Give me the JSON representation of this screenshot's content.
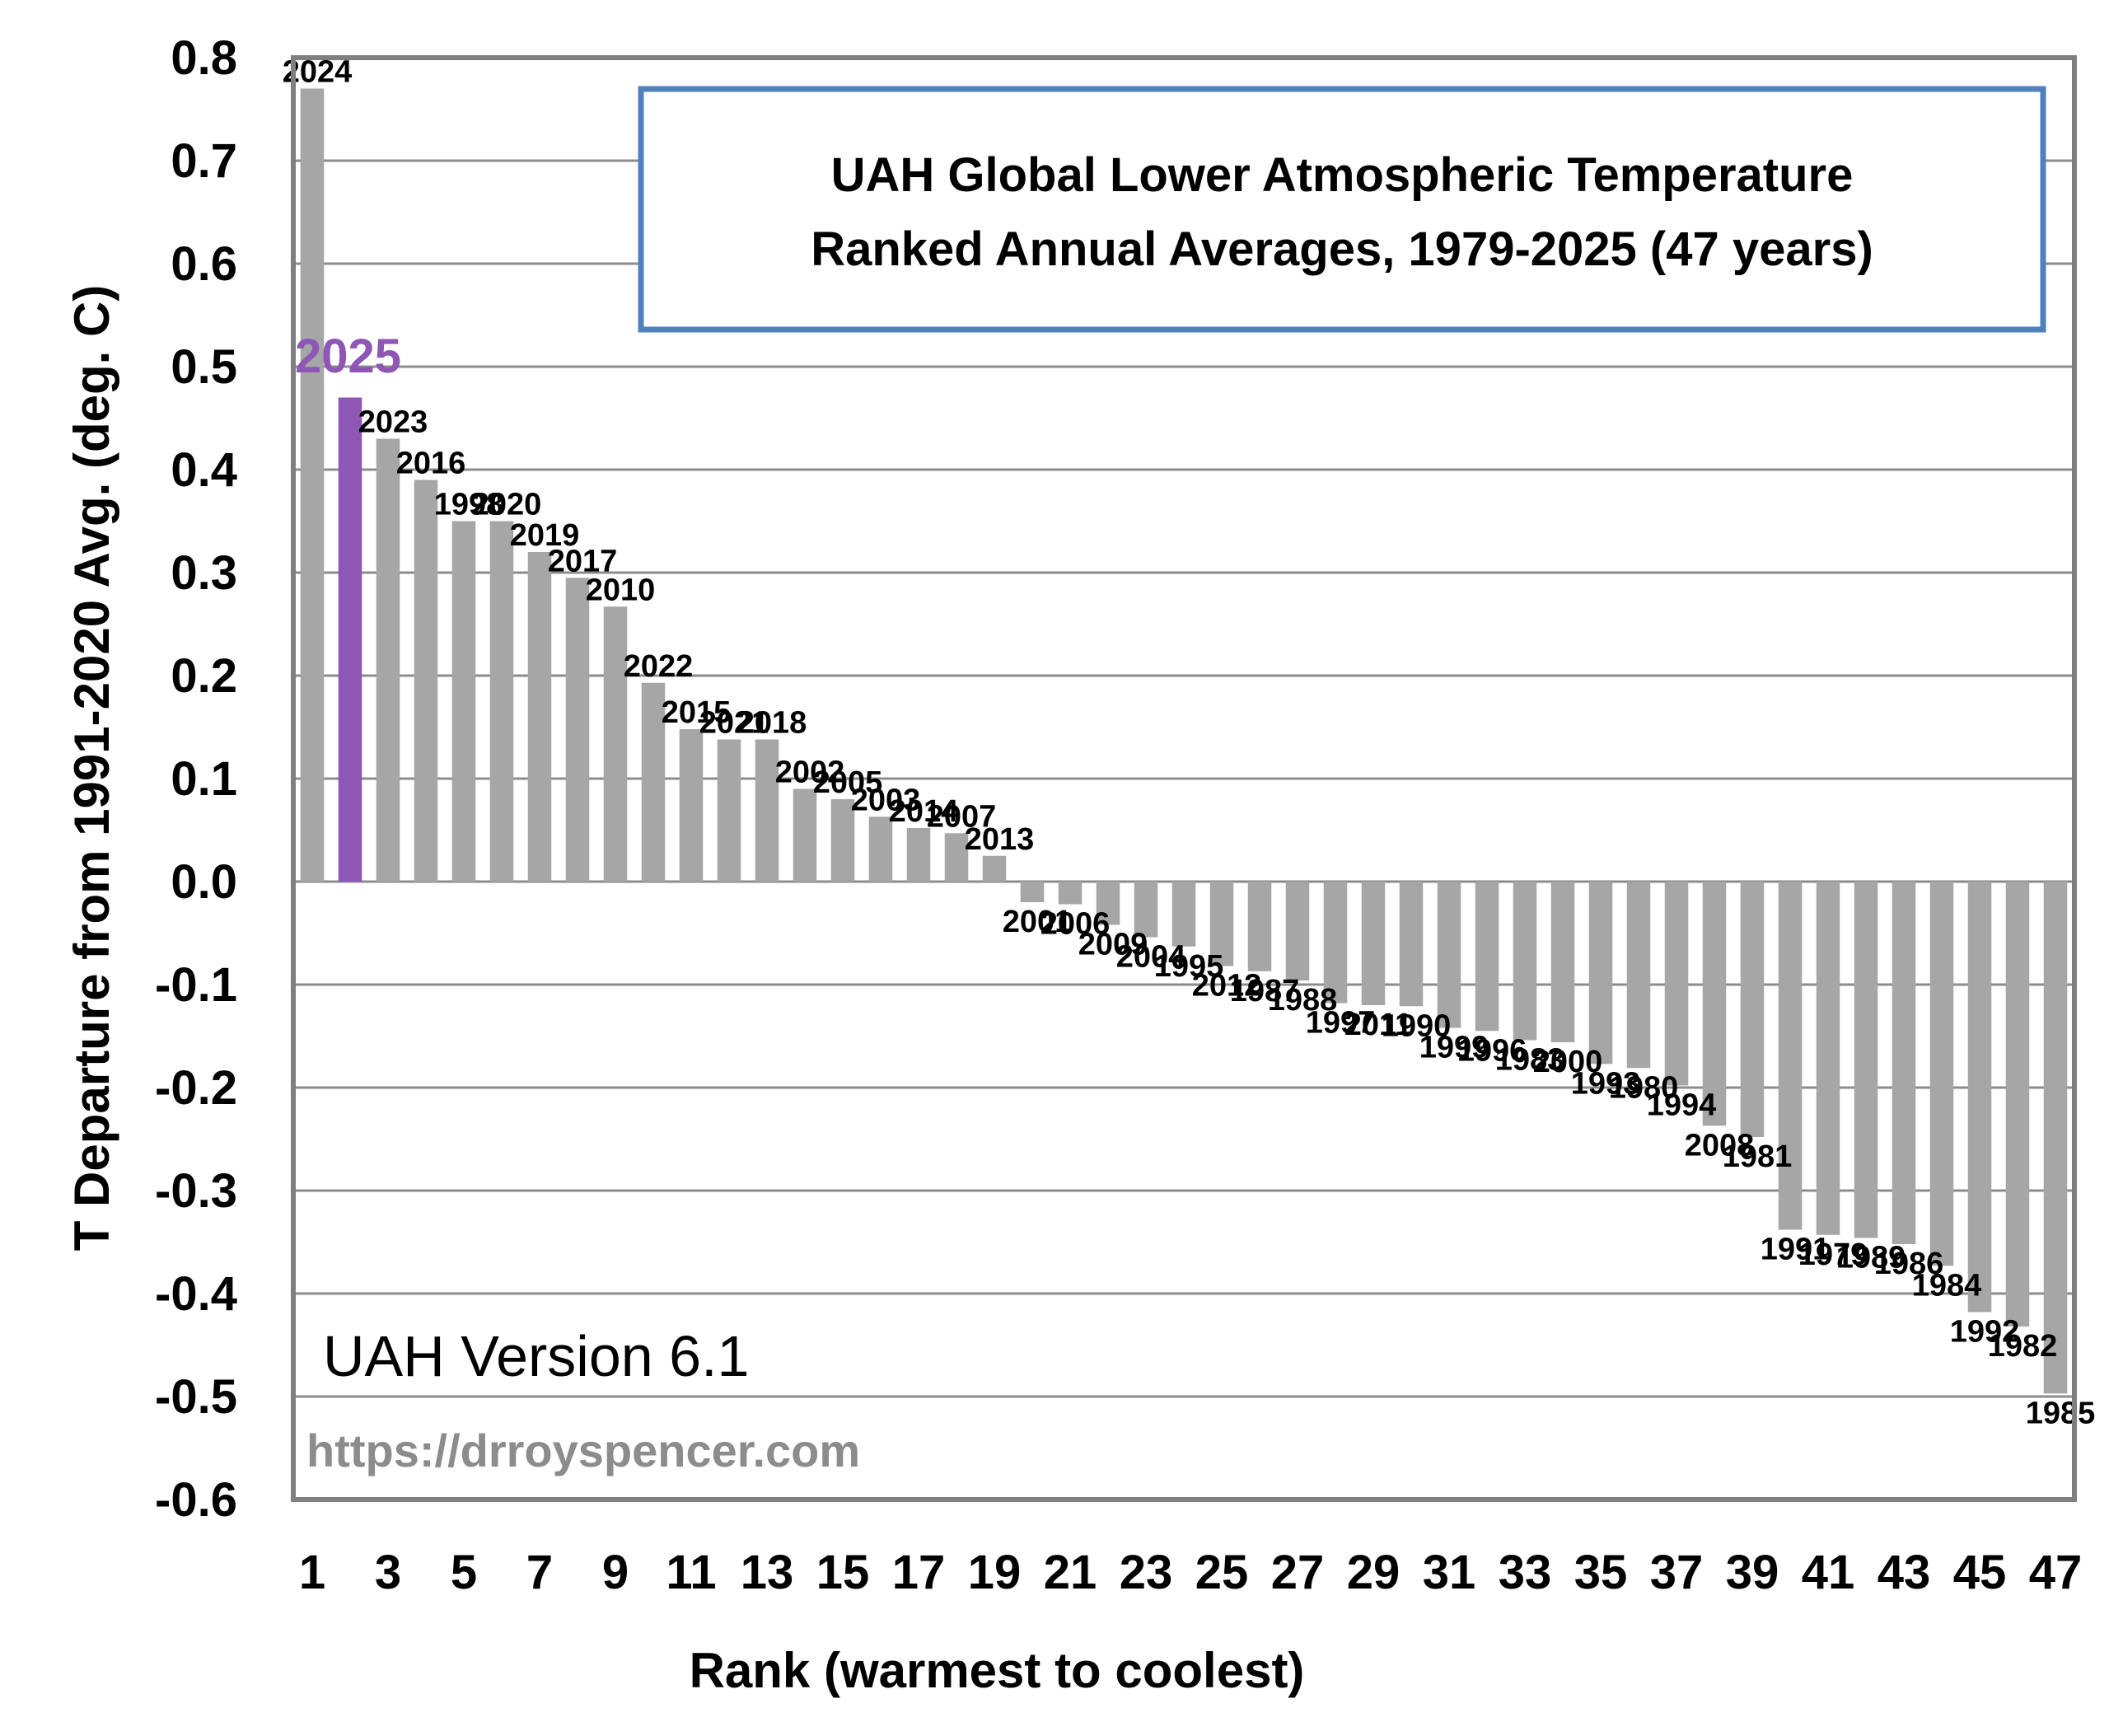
{
  "chart_data": {
    "type": "bar",
    "title": [
      "UAH Global Lower Atmospheric Temperature",
      "Ranked Annual Averages, 1979-2025 (47 years)"
    ],
    "xlabel": "Rank (warmest to coolest)",
    "ylabel": "T Departure from 1991-2020 Avg. (deg. C)",
    "ylim": [
      -0.6,
      0.8
    ],
    "ytick_labels": [
      "0.8",
      "0.7",
      "0.6",
      "0.5",
      "0.4",
      "0.3",
      "0.2",
      "0.1",
      "0.0",
      "-0.1",
      "-0.2",
      "-0.3",
      "-0.4",
      "-0.5",
      "-0.6"
    ],
    "xtick_labels": [
      "1",
      "3",
      "5",
      "7",
      "9",
      "11",
      "13",
      "15",
      "17",
      "19",
      "21",
      "23",
      "25",
      "27",
      "29",
      "31",
      "33",
      "35",
      "37",
      "39",
      "41",
      "43",
      "45",
      "47"
    ],
    "annotations": {
      "version": "UAH Version 6.1",
      "url": "https://drroyspencer.com"
    },
    "highlight": {
      "year": "2025",
      "color": "#8e56b5"
    },
    "bar_color": "#a6a6a6",
    "grid": true,
    "years": [
      "2024",
      "2025",
      "2023",
      "2016",
      "1998",
      "2020",
      "2019",
      "2017",
      "2010",
      "2022",
      "2015",
      "2021",
      "2018",
      "2002",
      "2005",
      "2003",
      "2014",
      "2007",
      "2013",
      "2001",
      "2006",
      "2009",
      "2004",
      "1995",
      "2012",
      "1987",
      "1988",
      "1997",
      "2011",
      "1990",
      "1999",
      "1996",
      "1983",
      "2000",
      "1993",
      "1980",
      "1994",
      "2008",
      "1981",
      "1991",
      "1979",
      "1989",
      "1986",
      "1984",
      "1992",
      "1982",
      "1985"
    ],
    "values": [
      0.77,
      0.47,
      0.43,
      0.39,
      0.35,
      0.35,
      0.32,
      0.295,
      0.267,
      0.193,
      0.148,
      0.138,
      0.138,
      0.09,
      0.08,
      0.063,
      0.052,
      0.047,
      0.025,
      -0.02,
      -0.022,
      -0.042,
      -0.054,
      -0.063,
      -0.082,
      -0.087,
      -0.096,
      -0.118,
      -0.12,
      -0.121,
      -0.142,
      -0.145,
      -0.154,
      -0.156,
      -0.177,
      -0.181,
      -0.198,
      -0.237,
      -0.248,
      -0.338,
      -0.343,
      -0.346,
      -0.352,
      -0.373,
      -0.418,
      -0.432,
      -0.497
    ]
  }
}
